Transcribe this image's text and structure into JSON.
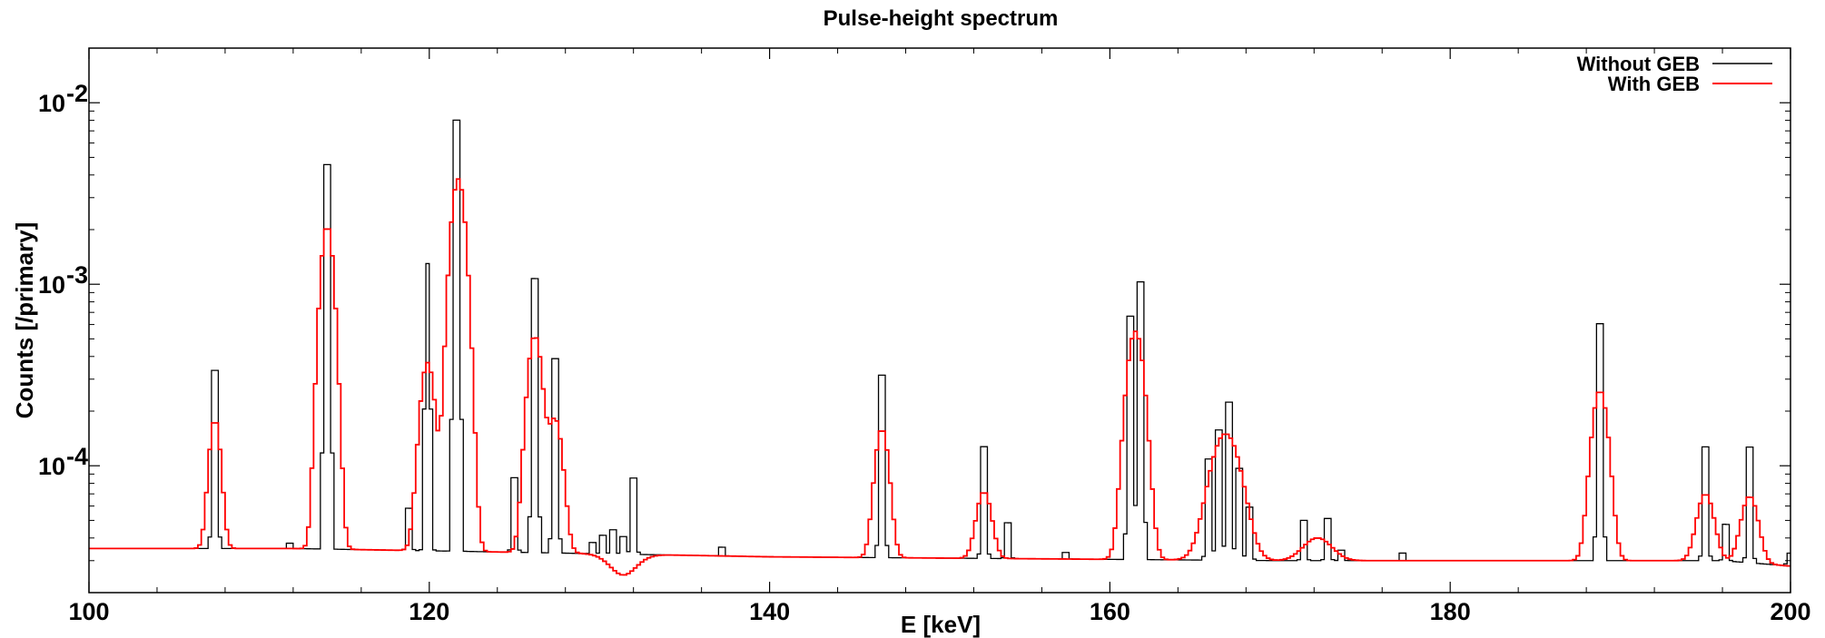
{
  "chart_data": {
    "type": "line",
    "title": "Pulse-height spectrum",
    "xlabel": "E [keV]",
    "ylabel": "Counts [/primary]",
    "xlim": [
      100,
      200
    ],
    "ylim": [
      2e-05,
      0.02
    ],
    "yscale": "log",
    "grid": false,
    "legend_position": "top-right",
    "x_ticks": [
      100,
      120,
      140,
      160,
      180,
      200
    ],
    "x_tick_labels": [
      "100",
      "120",
      "140",
      "160",
      "180",
      "200"
    ],
    "y_ticks": [
      0.0001,
      0.001,
      0.01
    ],
    "y_tick_labels": [
      {
        "mantissa": "10",
        "exponent": "-4"
      },
      {
        "mantissa": "10",
        "exponent": "-3"
      },
      {
        "mantissa": "10",
        "exponent": "-2"
      }
    ],
    "bin_width_keV": 0.2,
    "baseline": [
      [
        100,
        3.5e-05
      ],
      [
        112,
        3.5e-05
      ],
      [
        120,
        3.4e-05
      ],
      [
        128,
        3.3e-05
      ],
      [
        140,
        3.15e-05
      ],
      [
        150,
        3.1e-05
      ],
      [
        160,
        3.05e-05
      ],
      [
        170,
        3e-05
      ],
      [
        180,
        3e-05
      ],
      [
        190,
        3e-05
      ],
      [
        196,
        3e-05
      ],
      [
        200,
        2.8e-05
      ]
    ],
    "series": [
      {
        "name": "Without GEB",
        "color": "#000000",
        "peaks": [
          {
            "e": 107.4,
            "h": 0.00053,
            "w": 0.1
          },
          {
            "e": 111.8,
            "h": 3.9e-05,
            "w": 0.1
          },
          {
            "e": 114.0,
            "h": 0.0075,
            "w": 0.1
          },
          {
            "e": 118.8,
            "h": 7.4e-05,
            "w": 0.1
          },
          {
            "e": 119.9,
            "h": 0.0013,
            "w": 0.1
          },
          {
            "e": 121.6,
            "h": 0.0132,
            "w": 0.1
          },
          {
            "e": 125.0,
            "h": 0.00012,
            "w": 0.1
          },
          {
            "e": 126.2,
            "h": 0.00175,
            "w": 0.1
          },
          {
            "e": 127.4,
            "h": 0.00062,
            "w": 0.1
          },
          {
            "e": 129.6,
            "h": 4.1e-05,
            "w": 0.1
          },
          {
            "e": 130.2,
            "h": 4.7e-05,
            "w": 0.1
          },
          {
            "e": 130.8,
            "h": 5.2e-05,
            "w": 0.1
          },
          {
            "e": 131.4,
            "h": 4.6e-05,
            "w": 0.1
          },
          {
            "e": 132.0,
            "h": 0.00012,
            "w": 0.1
          },
          {
            "e": 137.2,
            "h": 3.8e-05,
            "w": 0.1
          },
          {
            "e": 146.6,
            "h": 0.0005,
            "w": 0.1
          },
          {
            "e": 152.6,
            "h": 0.00019,
            "w": 0.1
          },
          {
            "e": 154.0,
            "h": 6e-05,
            "w": 0.1
          },
          {
            "e": 157.4,
            "h": 3.5e-05,
            "w": 0.1
          },
          {
            "e": 161.2,
            "h": 0.00108,
            "w": 0.1
          },
          {
            "e": 161.8,
            "h": 0.00168,
            "w": 0.1
          },
          {
            "e": 165.8,
            "h": 0.00016,
            "w": 0.1
          },
          {
            "e": 166.4,
            "h": 0.00024,
            "w": 0.1
          },
          {
            "e": 167.0,
            "h": 0.00035,
            "w": 0.1
          },
          {
            "e": 167.6,
            "h": 0.00014,
            "w": 0.1
          },
          {
            "e": 168.2,
            "h": 7.8e-05,
            "w": 0.1
          },
          {
            "e": 171.4,
            "h": 6.3e-05,
            "w": 0.1
          },
          {
            "e": 172.8,
            "h": 6.5e-05,
            "w": 0.1
          },
          {
            "e": 173.6,
            "h": 3.7e-05,
            "w": 0.1
          },
          {
            "e": 177.2,
            "h": 3.5e-05,
            "w": 0.1
          },
          {
            "e": 188.8,
            "h": 0.00098,
            "w": 0.1
          },
          {
            "e": 195.0,
            "h": 0.00019,
            "w": 0.1
          },
          {
            "e": 196.2,
            "h": 5.9e-05,
            "w": 0.1
          },
          {
            "e": 197.6,
            "h": 0.00019,
            "w": 0.1
          },
          {
            "e": 199.9,
            "h": 3.3e-05,
            "w": 0.1
          }
        ]
      },
      {
        "name": "With GEB",
        "color": "#ff0000",
        "peaks": [
          {
            "e": 107.4,
            "h": 0.00018,
            "w": 0.3
          },
          {
            "e": 114.0,
            "h": 0.0021,
            "w": 0.34
          },
          {
            "e": 119.9,
            "h": 0.00037,
            "w": 0.38
          },
          {
            "e": 121.7,
            "h": 0.0038,
            "w": 0.38
          },
          {
            "e": 126.2,
            "h": 0.00052,
            "w": 0.38
          },
          {
            "e": 127.4,
            "h": 0.00018,
            "w": 0.38
          },
          {
            "e": 131.4,
            "h": 2.5e-05,
            "w": 0.8
          },
          {
            "e": 146.6,
            "h": 0.00016,
            "w": 0.36
          },
          {
            "e": 152.6,
            "h": 7.2e-05,
            "w": 0.4
          },
          {
            "e": 161.5,
            "h": 0.00055,
            "w": 0.45
          },
          {
            "e": 166.8,
            "h": 0.00015,
            "w": 0.8
          },
          {
            "e": 172.2,
            "h": 4e-05,
            "w": 0.8
          },
          {
            "e": 188.8,
            "h": 0.00026,
            "w": 0.42
          },
          {
            "e": 195.0,
            "h": 7e-05,
            "w": 0.45
          },
          {
            "e": 197.6,
            "h": 6.8e-05,
            "w": 0.45
          }
        ]
      }
    ]
  }
}
